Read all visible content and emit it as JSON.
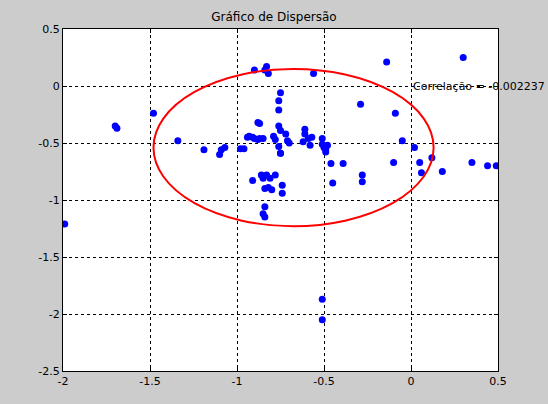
{
  "chart_data": {
    "type": "scatter",
    "title": "Gráfico de Dispersão",
    "marker": "circle",
    "color": "#0000ff",
    "grid": true,
    "xlim": [
      -2,
      0.5
    ],
    "ylim": [
      -2.5,
      0.5
    ],
    "xticks": [
      -2,
      -1.5,
      -1,
      -0.5,
      0,
      0.5
    ],
    "yticks": [
      -2.5,
      -2,
      -1.5,
      -1,
      -0.5,
      0,
      0.5
    ],
    "x": [
      -1.99,
      -1.7,
      -1.69,
      -1.48,
      -1.34,
      -1.19,
      -1.1,
      -1.09,
      -1.07,
      -0.98,
      -0.96,
      -0.94,
      -0.93,
      -0.91,
      -0.9,
      -0.88,
      -0.87,
      -0.85,
      -0.88,
      -0.87,
      -0.91,
      -0.9,
      -0.83,
      -0.84,
      -0.82,
      -0.86,
      -0.85,
      -0.83,
      -0.81,
      -0.78,
      -0.84,
      -0.82,
      -0.8,
      -0.84,
      -0.85,
      -0.84,
      -0.79,
      -0.78,
      -0.76,
      -0.76,
      -0.75,
      -0.75,
      -0.72,
      -0.7,
      -0.74,
      -0.74,
      -0.75,
      -0.76,
      -0.76,
      -0.75,
      -0.71,
      -0.61,
      -0.61,
      -0.59,
      -0.57,
      -0.62,
      -0.58,
      -0.56,
      -0.51,
      -0.51,
      -0.5,
      -0.49,
      -0.49,
      -0.48,
      -0.46,
      -0.45,
      -0.39,
      -0.51,
      -0.51,
      -0.28,
      -0.28,
      -0.29,
      -0.14,
      -0.09,
      -0.1,
      -0.05,
      0.02,
      0.05,
      0.06,
      0.12,
      0.18,
      0.3,
      0.35,
      0.44,
      0.49
    ],
    "y": [
      -1.21,
      -0.35,
      -0.37,
      -0.24,
      -0.48,
      -0.56,
      -0.6,
      -0.56,
      -0.54,
      -0.55,
      -0.55,
      -0.45,
      -0.44,
      -0.45,
      -0.46,
      -0.47,
      -0.46,
      -0.46,
      -0.32,
      -0.33,
      -0.83,
      0.14,
      0.17,
      0.14,
      0.11,
      -0.78,
      -0.81,
      -0.78,
      -0.81,
      -0.78,
      -0.9,
      -0.89,
      -0.91,
      -1.06,
      -1.12,
      -1.15,
      -0.44,
      -0.47,
      -0.53,
      -0.35,
      -0.39,
      -0.59,
      -0.42,
      -0.5,
      -0.87,
      -0.94,
      -0.59,
      -0.21,
      -0.13,
      -0.06,
      -0.48,
      -0.38,
      -0.42,
      -0.46,
      -0.45,
      -0.49,
      -0.52,
      0.11,
      -0.46,
      -0.51,
      -0.54,
      -0.58,
      -0.56,
      -0.52,
      -0.68,
      -0.85,
      -0.68,
      -1.87,
      -2.05,
      -0.78,
      -0.84,
      -0.16,
      0.21,
      -0.24,
      -0.67,
      -0.48,
      -0.54,
      -0.67,
      -0.76,
      -0.63,
      -0.75,
      0.25,
      -0.67,
      -0.7,
      -0.7
    ],
    "ellipse": {
      "x0": -1.48,
      "x1": 0.13,
      "y0": -1.23,
      "y1": 0.15,
      "color": "#ff0000"
    },
    "annotations": [
      {
        "text": "Correlação = -0.002237",
        "x": 0.0,
        "y": 0.0
      }
    ]
  }
}
